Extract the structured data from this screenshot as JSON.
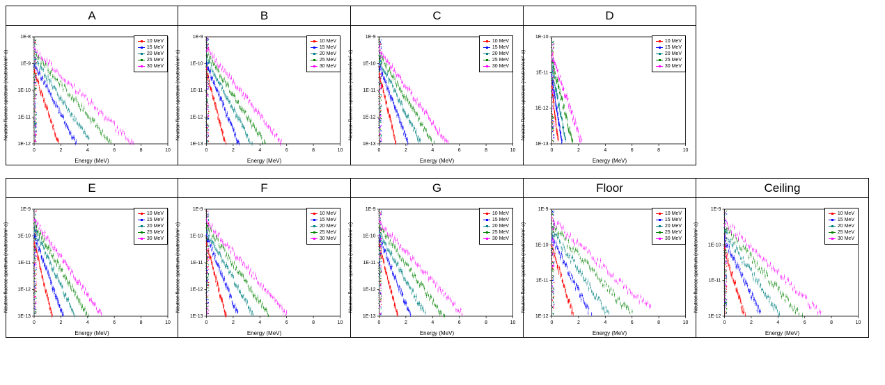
{
  "global": {
    "x_label": "Energy (MeV)",
    "y_label": "Neutron fluence spectrum (neutron/cm²·e)",
    "x_lim": [
      0,
      10
    ],
    "x_ticks": [
      0,
      2,
      4,
      6,
      8,
      10
    ],
    "y_ticks_labels": [
      "1E-12",
      "1E-11",
      "1E-10",
      "1E-9",
      "1E-8"
    ],
    "legend": [
      "10 MeV",
      "15 MeV",
      "20 MeV",
      "25 MeV",
      "30 MeV"
    ],
    "series_colors": [
      "#ff0000",
      "#0000ff",
      "#008080",
      "#008000",
      "#ff00ff"
    ],
    "background_color": "#ffffff",
    "axis_color": "#000000",
    "title_fontsize": 17,
    "tick_fontsize": 7,
    "label_fontsize": 8,
    "marker_size": 1.2,
    "jitter_seed": 12345
  },
  "panels": [
    {
      "title": "A",
      "row": 0,
      "y_log_lim": [
        -12,
        -8
      ],
      "series": [
        {
          "y0": -9.3,
          "slope": -1.45,
          "xmax": 2.7
        },
        {
          "y0": -9.0,
          "slope": -0.95,
          "xmax": 3.8
        },
        {
          "y0": -8.8,
          "slope": -0.75,
          "xmax": 4.8
        },
        {
          "y0": -8.6,
          "slope": -0.58,
          "xmax": 6.0
        },
        {
          "y0": -8.45,
          "slope": -0.48,
          "xmax": 7.4
        }
      ]
    },
    {
      "title": "B",
      "row": 0,
      "y_log_lim": [
        -13,
        -9
      ],
      "series": [
        {
          "y0": -10.3,
          "slope": -1.9,
          "xmax": 1.9
        },
        {
          "y0": -10.0,
          "slope": -1.25,
          "xmax": 2.9
        },
        {
          "y0": -9.8,
          "slope": -0.95,
          "xmax": 3.8
        },
        {
          "y0": -9.6,
          "slope": -0.78,
          "xmax": 4.6
        },
        {
          "y0": -9.45,
          "slope": -0.62,
          "xmax": 5.6
        }
      ]
    },
    {
      "title": "C",
      "row": 0,
      "y_log_lim": [
        -13,
        -9
      ],
      "series": [
        {
          "y0": -10.4,
          "slope": -2.0,
          "xmax": 1.7
        },
        {
          "y0": -10.05,
          "slope": -1.35,
          "xmax": 2.7
        },
        {
          "y0": -9.85,
          "slope": -1.0,
          "xmax": 3.6
        },
        {
          "y0": -9.65,
          "slope": -0.82,
          "xmax": 4.5
        },
        {
          "y0": -9.5,
          "slope": -0.68,
          "xmax": 5.3
        }
      ]
    },
    {
      "title": "D",
      "row": 0,
      "y_log_lim": [
        -13,
        -10
      ],
      "series": [
        {
          "y0": -11.4,
          "slope": -3.2,
          "xmax": 0.8
        },
        {
          "y0": -11.1,
          "slope": -2.5,
          "xmax": 1.1
        },
        {
          "y0": -10.85,
          "slope": -2.0,
          "xmax": 1.5
        },
        {
          "y0": -10.65,
          "slope": -1.5,
          "xmax": 2.2
        },
        {
          "y0": -10.5,
          "slope": -1.1,
          "xmax": 3.1
        }
      ]
    },
    {
      "title": "E",
      "row": 1,
      "y_log_lim": [
        -13,
        -9
      ],
      "series": [
        {
          "y0": -10.2,
          "slope": -2.1,
          "xmax": 1.8
        },
        {
          "y0": -9.95,
          "slope": -1.4,
          "xmax": 2.6
        },
        {
          "y0": -9.75,
          "slope": -1.05,
          "xmax": 3.5
        },
        {
          "y0": -9.55,
          "slope": -0.85,
          "xmax": 4.3
        },
        {
          "y0": -9.4,
          "slope": -0.7,
          "xmax": 5.1
        }
      ]
    },
    {
      "title": "F",
      "row": 1,
      "y_log_lim": [
        -13,
        -9
      ],
      "series": [
        {
          "y0": -10.3,
          "slope": -1.85,
          "xmax": 2.0
        },
        {
          "y0": -10.0,
          "slope": -1.25,
          "xmax": 3.0
        },
        {
          "y0": -9.8,
          "slope": -0.9,
          "xmax": 4.0
        },
        {
          "y0": -9.6,
          "slope": -0.72,
          "xmax": 5.0
        },
        {
          "y0": -9.45,
          "slope": -0.58,
          "xmax": 6.0
        }
      ]
    },
    {
      "title": "G",
      "row": 1,
      "y_log_lim": [
        -13,
        -9
      ],
      "series": [
        {
          "y0": -10.35,
          "slope": -1.9,
          "xmax": 2.0
        },
        {
          "y0": -10.05,
          "slope": -1.25,
          "xmax": 3.0
        },
        {
          "y0": -9.85,
          "slope": -0.9,
          "xmax": 4.1
        },
        {
          "y0": -9.65,
          "slope": -0.7,
          "xmax": 5.2
        },
        {
          "y0": -9.5,
          "slope": -0.55,
          "xmax": 6.2
        }
      ]
    },
    {
      "title": "Floor",
      "row": 1,
      "y_log_lim": [
        -12,
        -9
      ],
      "series": [
        {
          "y0": -10.05,
          "slope": -1.2,
          "xmax": 2.3
        },
        {
          "y0": -9.8,
          "slope": -0.75,
          "xmax": 3.6
        },
        {
          "y0": -9.6,
          "slope": -0.55,
          "xmax": 4.9
        },
        {
          "y0": -9.45,
          "slope": -0.42,
          "xmax": 6.1
        },
        {
          "y0": -9.3,
          "slope": -0.34,
          "xmax": 7.4
        }
      ]
    },
    {
      "title": "Ceiling",
      "row": 1,
      "y_log_lim": [
        -12,
        -9
      ],
      "series": [
        {
          "y0": -10.1,
          "slope": -1.25,
          "xmax": 2.2
        },
        {
          "y0": -9.85,
          "slope": -0.78,
          "xmax": 3.5
        },
        {
          "y0": -9.65,
          "slope": -0.56,
          "xmax": 4.8
        },
        {
          "y0": -9.5,
          "slope": -0.44,
          "xmax": 6.0
        },
        {
          "y0": -9.35,
          "slope": -0.36,
          "xmax": 7.2
        }
      ]
    }
  ]
}
